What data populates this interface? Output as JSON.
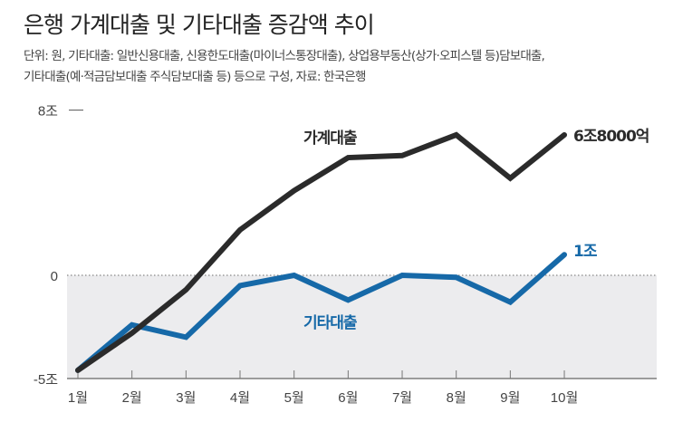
{
  "title": "은행 가계대출 및 기타대출 증감액 추이",
  "subtitle_lines": [
    "단위: 원, 기타대출: 일반신용대출, 신용한도대출(마이너스통장대출), 상업용부동산(상가·오피스텔 등)담보대출,",
    "기타대출(예·적금담보대출 주식담보대출 등) 등으로 구성, 자료: 한국은행"
  ],
  "colors": {
    "household": "#2b2b2b",
    "other": "#1669a8",
    "negative_band": "#ececee",
    "axis": "#666666"
  },
  "chart_data": {
    "type": "line",
    "title": "은행 가계대출 및 기타대출 증감액 추이",
    "xlabel": "",
    "ylabel": "",
    "categories": [
      "1월",
      "2월",
      "3월",
      "4월",
      "5월",
      "6월",
      "7월",
      "8월",
      "9월",
      "10월"
    ],
    "ylim": [
      -5,
      8
    ],
    "yticks": [
      {
        "value": 8,
        "label": "8조"
      },
      {
        "value": 0,
        "label": "0"
      },
      {
        "value": -5,
        "label": "-5조"
      }
    ],
    "series": [
      {
        "name": "가계대출",
        "color": "#2b2b2b",
        "values": [
          -4.6,
          -2.8,
          -0.7,
          2.2,
          4.1,
          5.7,
          5.8,
          6.8,
          4.7,
          6.8
        ],
        "end_label": "6조8000억"
      },
      {
        "name": "기타대출",
        "color": "#1669a8",
        "values": [
          -4.6,
          -2.4,
          -3.0,
          -0.5,
          0.0,
          -1.2,
          0.0,
          -0.1,
          -1.3,
          1.0
        ],
        "end_label": "1조"
      }
    ],
    "grid": false,
    "zero_line": "dotted",
    "negative_region_shaded": true
  }
}
